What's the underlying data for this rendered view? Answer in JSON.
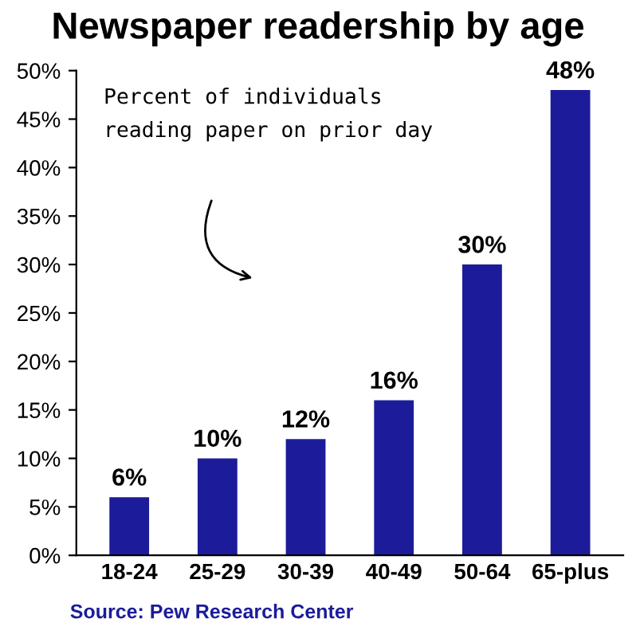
{
  "chart_data": {
    "type": "bar",
    "title": "Newspaper readership by age",
    "categories": [
      "18-24",
      "25-29",
      "30-39",
      "40-49",
      "50-64",
      "65-plus"
    ],
    "values": [
      6,
      10,
      12,
      16,
      30,
      48
    ],
    "value_labels": [
      "6%",
      "10%",
      "12%",
      "16%",
      "30%",
      "48%"
    ],
    "color": "#1c1c9a",
    "ylim": [
      0,
      50
    ],
    "yticks": [
      {
        "value": 0,
        "label": "0%"
      },
      {
        "value": 5,
        "label": "5%"
      },
      {
        "value": 10,
        "label": "10%"
      },
      {
        "value": 15,
        "label": "15%"
      },
      {
        "value": 20,
        "label": "20%"
      },
      {
        "value": 25,
        "label": "25%"
      },
      {
        "value": 30,
        "label": "30%"
      },
      {
        "value": 35,
        "label": "35%"
      },
      {
        "value": 40,
        "label": "40%"
      },
      {
        "value": 45,
        "label": "45%"
      },
      {
        "value": 50,
        "label": "50%"
      }
    ],
    "grid": false,
    "annotations": [
      "Percent of individuals\nreading paper on prior day",
      "Source: Pew Research Center"
    ]
  }
}
